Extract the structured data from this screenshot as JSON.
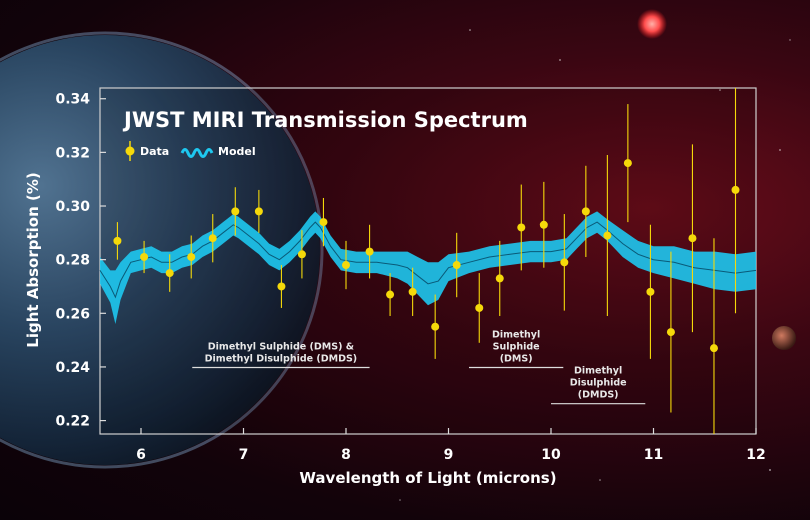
{
  "chart_data": {
    "type": "scatter",
    "title": "JWST MIRI Transmission Spectrum",
    "xlabel": "Wavelength of Light (microns)",
    "ylabel": "Light Absorption (%)",
    "xlim": [
      5.6,
      12.0
    ],
    "ylim": [
      0.215,
      0.344
    ],
    "xticks": [
      "6",
      "7",
      "8",
      "9",
      "10",
      "11",
      "12"
    ],
    "yticks": [
      "0.22",
      "0.24",
      "0.26",
      "0.28",
      "0.30",
      "0.32",
      "0.34"
    ],
    "grid": false,
    "legend": [
      {
        "label": "Data",
        "color": "#f5d90a"
      },
      {
        "label": "Model",
        "color": "#1ec8f0"
      }
    ],
    "series": [
      {
        "name": "Data",
        "color": "#f5d90a",
        "x": [
          5.77,
          6.03,
          6.28,
          6.49,
          6.7,
          6.92,
          7.15,
          7.37,
          7.57,
          7.78,
          8.0,
          8.23,
          8.43,
          8.65,
          8.87,
          9.08,
          9.3,
          9.5,
          9.71,
          9.93,
          10.13,
          10.34,
          10.55,
          10.75,
          10.97,
          11.17,
          11.38,
          11.59,
          11.8
        ],
        "y": [
          0.287,
          0.281,
          0.275,
          0.281,
          0.288,
          0.298,
          0.298,
          0.27,
          0.282,
          0.294,
          0.278,
          0.283,
          0.267,
          0.268,
          0.255,
          0.278,
          0.262,
          0.273,
          0.292,
          0.293,
          0.279,
          0.298,
          0.289,
          0.316,
          0.268,
          0.253,
          0.288,
          0.247,
          0.306
        ],
        "err": [
          0.007,
          0.006,
          0.007,
          0.008,
          0.009,
          0.009,
          0.008,
          0.008,
          0.009,
          0.009,
          0.009,
          0.01,
          0.008,
          0.009,
          0.012,
          0.012,
          0.013,
          0.014,
          0.016,
          0.016,
          0.018,
          0.017,
          0.03,
          0.022,
          0.025,
          0.03,
          0.035,
          0.041,
          0.046
        ]
      },
      {
        "name": "Model",
        "color": "#1ec8f0",
        "x": [
          5.6,
          5.7,
          5.75,
          5.8,
          5.9,
          6.0,
          6.1,
          6.2,
          6.3,
          6.4,
          6.5,
          6.6,
          6.7,
          6.8,
          6.9,
          6.95,
          7.05,
          7.15,
          7.25,
          7.35,
          7.45,
          7.55,
          7.65,
          7.7,
          7.75,
          7.85,
          7.95,
          8.1,
          8.3,
          8.5,
          8.6,
          8.7,
          8.8,
          8.9,
          9.0,
          9.2,
          9.4,
          9.6,
          9.8,
          10.0,
          10.15,
          10.25,
          10.35,
          10.45,
          10.55,
          10.7,
          10.85,
          11.0,
          11.2,
          11.4,
          11.6,
          11.8,
          12.0
        ],
        "y": [
          0.276,
          0.27,
          0.266,
          0.272,
          0.279,
          0.28,
          0.281,
          0.279,
          0.279,
          0.281,
          0.282,
          0.285,
          0.287,
          0.29,
          0.293,
          0.292,
          0.289,
          0.286,
          0.282,
          0.28,
          0.283,
          0.287,
          0.292,
          0.294,
          0.292,
          0.285,
          0.28,
          0.279,
          0.279,
          0.278,
          0.277,
          0.274,
          0.271,
          0.272,
          0.277,
          0.279,
          0.281,
          0.282,
          0.283,
          0.283,
          0.284,
          0.288,
          0.292,
          0.294,
          0.291,
          0.286,
          0.282,
          0.28,
          0.279,
          0.277,
          0.276,
          0.275,
          0.276
        ],
        "band": [
          0.005,
          0.006,
          0.01,
          0.007,
          0.004,
          0.004,
          0.004,
          0.004,
          0.004,
          0.004,
          0.004,
          0.004,
          0.004,
          0.004,
          0.004,
          0.004,
          0.004,
          0.004,
          0.004,
          0.004,
          0.004,
          0.004,
          0.004,
          0.004,
          0.004,
          0.004,
          0.004,
          0.004,
          0.004,
          0.005,
          0.006,
          0.007,
          0.008,
          0.007,
          0.005,
          0.004,
          0.004,
          0.004,
          0.004,
          0.004,
          0.004,
          0.004,
          0.004,
          0.004,
          0.004,
          0.005,
          0.005,
          0.005,
          0.006,
          0.006,
          0.007,
          0.007,
          0.007
        ]
      }
    ],
    "annotations": [
      {
        "lines": [
          "Dimethyl Sulphide (DMS) &",
          "Dimethyl Disulphide (DMDS)"
        ],
        "x_start": 6.5,
        "x_end": 8.23,
        "y_line": 0.2398
      },
      {
        "lines": [
          "Dimethyl",
          "Sulphide",
          "(DMS)"
        ],
        "x_start": 9.2,
        "x_end": 10.12,
        "y_line": 0.2398
      },
      {
        "lines": [
          "Dimethyl",
          "Disulphide",
          "(DMDS)"
        ],
        "x_start": 10.0,
        "x_end": 10.92,
        "y_line": 0.2263
      }
    ]
  }
}
